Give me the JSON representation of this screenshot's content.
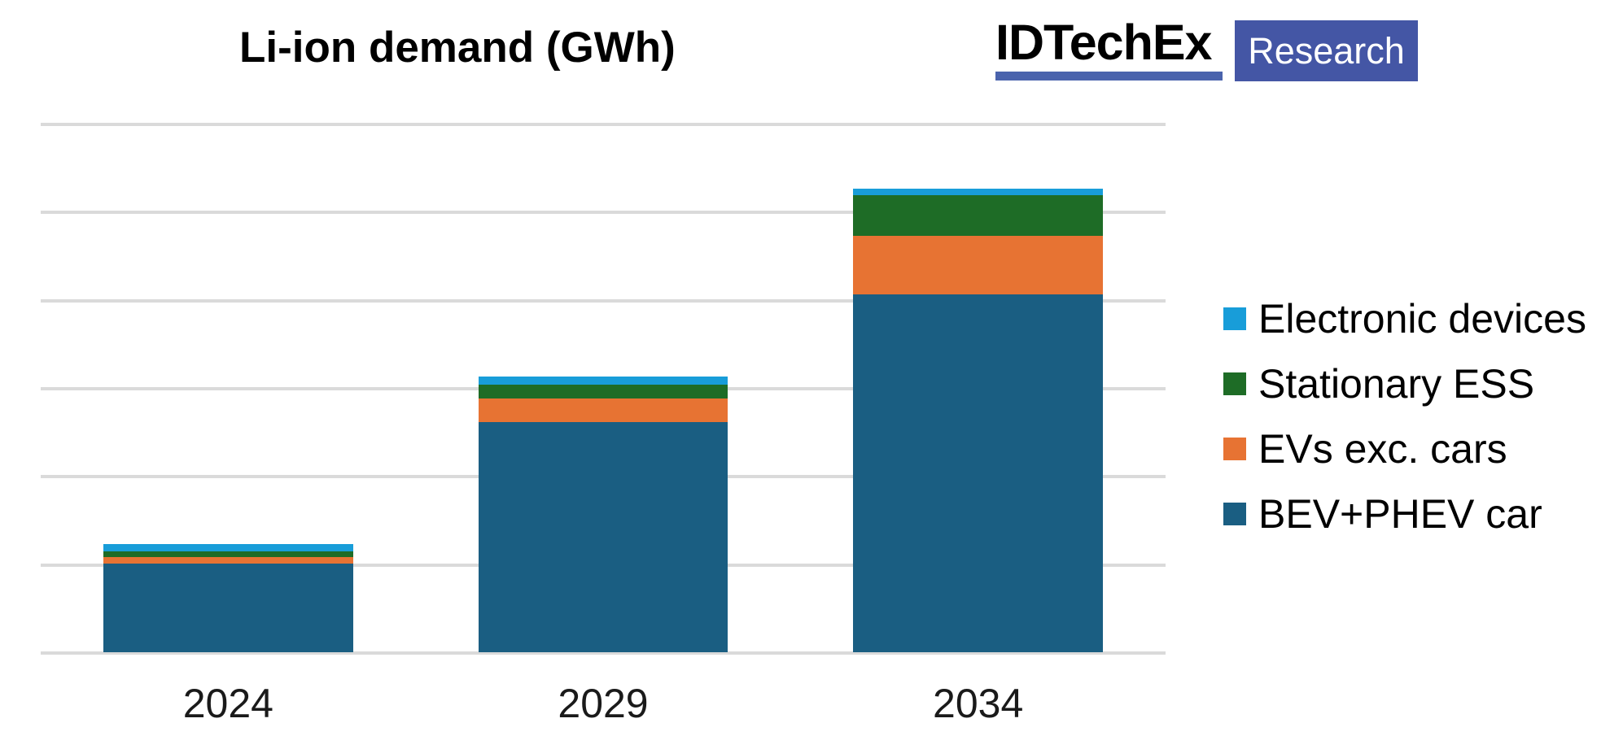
{
  "page": {
    "background": "#ffffff"
  },
  "header": {
    "logo": {
      "brand": "IDTechEx",
      "label": "Research",
      "brand_color": "#000000",
      "underline_color": "#4a63ad",
      "badge_color": "#4456a5",
      "label_text_color": "#ffffff"
    }
  },
  "chart_data": {
    "type": "bar",
    "stacked": true,
    "title": "Li-ion demand (GWh)",
    "xlabel": "",
    "ylabel": "",
    "categories": [
      "2024",
      "2029",
      "2034"
    ],
    "series": [
      {
        "name": "BEV+PHEV car",
        "color": "#1a5e82",
        "values": [
          505,
          1305,
          2030
        ]
      },
      {
        "name": "EVs exc. cars",
        "color": "#e77333",
        "values": [
          34,
          133,
          334
        ]
      },
      {
        "name": "Stationary ESS",
        "color": "#1e6c26",
        "values": [
          34,
          82,
          232
        ]
      },
      {
        "name": "Electronic devices",
        "color": "#189dd9",
        "values": [
          39,
          43,
          36
        ]
      }
    ],
    "ylim": [
      0,
      3000
    ],
    "gridline_step": 500,
    "grid": true,
    "y_tick_labels_visible": false,
    "gridline_color": "#dadada",
    "legend_position": "right",
    "legend_order_top_to_bottom": [
      "Electronic devices",
      "Stationary ESS",
      "EVs exc. cars",
      "BEV+PHEV car"
    ]
  }
}
